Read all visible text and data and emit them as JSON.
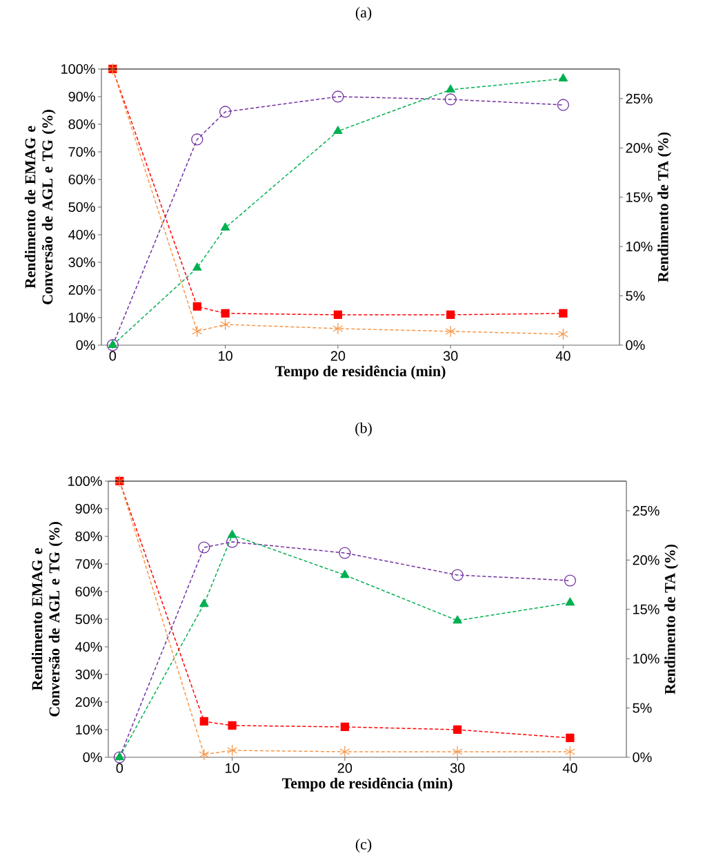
{
  "chart_data": [
    {
      "type": "line",
      "title": "(a)",
      "xlabel": "Tempo de residência (min)",
      "ylabel": "Rendimento de EMAG e Conversão de AGL e TG (%)",
      "y2label": "Rendimento de TA (%)",
      "annotations": [
        "(b)"
      ],
      "xlim": [
        -1,
        45
      ],
      "xticks": [
        0,
        10,
        20,
        30,
        40
      ],
      "ylim": [
        0,
        100
      ],
      "yticks": [
        {
          "value": 0,
          "label": "0%"
        },
        {
          "value": 10,
          "label": "10%"
        },
        {
          "value": 20,
          "label": "20%"
        },
        {
          "value": 30,
          "label": "30%"
        },
        {
          "value": 40,
          "label": "40%"
        },
        {
          "value": 50,
          "label": "50%"
        },
        {
          "value": 60,
          "label": "60%"
        },
        {
          "value": 70,
          "label": "70%"
        },
        {
          "value": 80,
          "label": "80%"
        },
        {
          "value": 90,
          "label": "90%"
        },
        {
          "value": 100,
          "label": "100%"
        }
      ],
      "y2lim": [
        0,
        28
      ],
      "y2ticks": [
        {
          "value": 0,
          "label": "0%"
        },
        {
          "value": 5,
          "label": "5%"
        },
        {
          "value": 10,
          "label": "10%"
        },
        {
          "value": 15,
          "label": "15%"
        },
        {
          "value": 20,
          "label": "20%"
        },
        {
          "value": 25,
          "label": "25%"
        }
      ],
      "grid": false,
      "line_style": "dashed",
      "x": [
        0,
        7.5,
        10,
        20,
        30,
        40
      ],
      "series": [
        {
          "color": "#7030a0",
          "marker": "circle",
          "values": [
            0,
            74.5,
            84.5,
            90,
            89,
            87
          ]
        },
        {
          "color": "#00b050",
          "marker": "triangle",
          "values": [
            0,
            28,
            42.5,
            77.5,
            92.5,
            96.5
          ]
        },
        {
          "color": "#ff0000",
          "marker": "square",
          "values": [
            100,
            14,
            11.5,
            11,
            11,
            11.5
          ]
        },
        {
          "color": "#f79646",
          "marker": "cross",
          "values": [
            100,
            5,
            7.5,
            6,
            5,
            4
          ]
        }
      ]
    },
    {
      "type": "line",
      "xlabel": "Tempo de residência (min)",
      "ylabel": "Rendimento EMAG e Conversão de AGL e TG (%)",
      "y2label": "Rendimento de TA (%)",
      "annotations": [
        "(c)"
      ],
      "xlim": [
        -1,
        45
      ],
      "xticks": [
        0,
        10,
        20,
        30,
        40
      ],
      "ylim": [
        0,
        100
      ],
      "yticks": [
        {
          "value": 0,
          "label": "0%"
        },
        {
          "value": 10,
          "label": "10%"
        },
        {
          "value": 20,
          "label": "20%"
        },
        {
          "value": 30,
          "label": "30%"
        },
        {
          "value": 40,
          "label": "40%"
        },
        {
          "value": 50,
          "label": "50%"
        },
        {
          "value": 60,
          "label": "60%"
        },
        {
          "value": 70,
          "label": "70%"
        },
        {
          "value": 80,
          "label": "80%"
        },
        {
          "value": 90,
          "label": "90%"
        },
        {
          "value": 100,
          "label": "100%"
        }
      ],
      "y2lim": [
        0,
        28
      ],
      "y2ticks": [
        {
          "value": 0,
          "label": "0%"
        },
        {
          "value": 5,
          "label": "5%"
        },
        {
          "value": 10,
          "label": "10%"
        },
        {
          "value": 15,
          "label": "15%"
        },
        {
          "value": 20,
          "label": "20%"
        },
        {
          "value": 25,
          "label": "25%"
        }
      ],
      "grid": false,
      "line_style": "dashed",
      "x": [
        0,
        7.5,
        10,
        20,
        30,
        40
      ],
      "series": [
        {
          "color": "#7030a0",
          "marker": "circle",
          "values": [
            0,
            76,
            78,
            74,
            66,
            64
          ]
        },
        {
          "color": "#00b050",
          "marker": "triangle",
          "values": [
            0,
            55.5,
            80.5,
            66,
            49.5,
            56
          ]
        },
        {
          "color": "#ff0000",
          "marker": "square",
          "values": [
            100,
            13,
            11.5,
            11,
            10,
            7
          ]
        },
        {
          "color": "#f79646",
          "marker": "cross",
          "values": [
            100,
            1,
            2.5,
            2,
            2,
            2
          ]
        }
      ]
    }
  ]
}
